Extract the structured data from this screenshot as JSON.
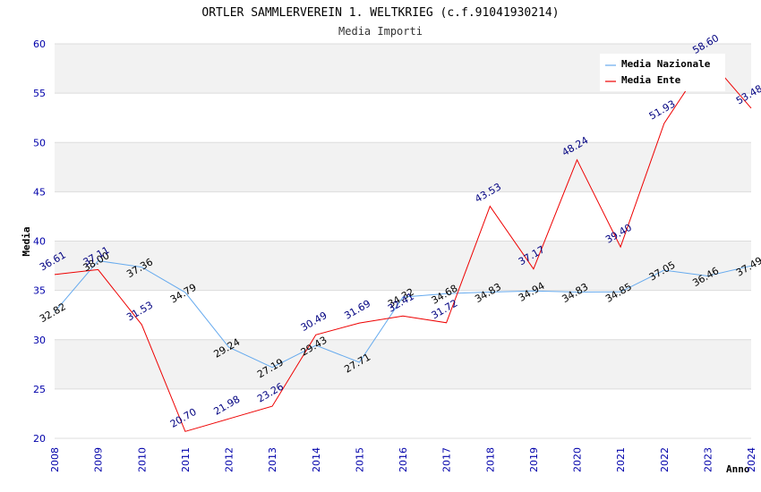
{
  "chart_data": {
    "type": "line",
    "title": "ORTLER SAMMLERVEREIN 1. WELTKRIEG (c.f.91041930214)",
    "subtitle": "Media Importi",
    "xlabel": "Anno",
    "ylabel": "Media",
    "ylim": [
      20,
      60
    ],
    "yticks": [
      20,
      25,
      30,
      35,
      40,
      45,
      50,
      55,
      60
    ],
    "x": [
      "2008",
      "2009",
      "2010",
      "2011",
      "2012",
      "2013",
      "2014",
      "2015",
      "2016",
      "2017",
      "2018",
      "2019",
      "2020",
      "2021",
      "2022",
      "2023",
      "2024"
    ],
    "series": [
      {
        "name": "Media Nazionale",
        "color": "#66aaee",
        "values": [
          32.82,
          38.0,
          37.36,
          34.79,
          29.24,
          27.19,
          29.43,
          27.71,
          34.32,
          34.68,
          34.83,
          34.94,
          34.83,
          34.85,
          37.05,
          36.46,
          37.49
        ],
        "labels": [
          "32.82",
          "38.00",
          "37.36",
          "34.79",
          "29.24",
          "27.19",
          "29.43",
          "27.71",
          "34.32",
          "34.68",
          "34.83",
          "34.94",
          "34.83",
          "34.85",
          "37.05",
          "36.46",
          "37.49"
        ]
      },
      {
        "name": "Media Ente",
        "color": "#ee0000",
        "values": [
          36.61,
          37.11,
          31.53,
          20.7,
          21.98,
          23.26,
          30.49,
          31.69,
          32.41,
          31.72,
          43.53,
          37.17,
          48.24,
          39.4,
          51.93,
          58.6,
          53.48
        ],
        "labels": [
          "36.61",
          "37.11",
          "31.53",
          "20.70",
          "21.98",
          "23.26",
          "30.49",
          "31.69",
          "32.41",
          "31.72",
          "43.53",
          "37.17",
          "48.24",
          "39.40",
          "51.93",
          "58.60",
          "53.48"
        ]
      }
    ],
    "grid": true,
    "legend": "top-right"
  }
}
